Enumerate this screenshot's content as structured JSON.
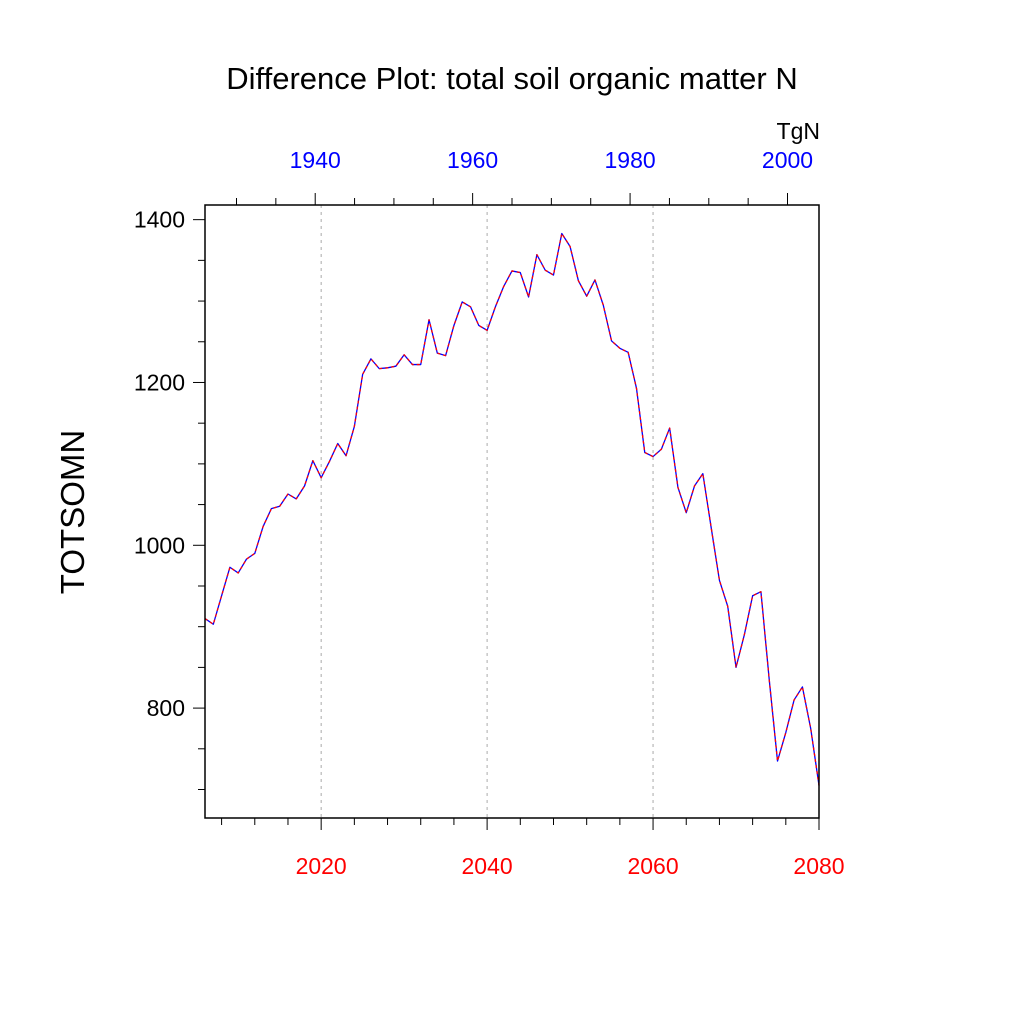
{
  "chart_data": {
    "type": "line",
    "title": "Difference Plot: total soil organic matter N",
    "ylabel": "TOTSOMN",
    "units_label": "TgN",
    "bottom_axis": {
      "range": [
        2006,
        2080
      ],
      "ticks": [
        2020,
        2040,
        2060,
        2080
      ],
      "color": "#ff0000"
    },
    "top_axis": {
      "range": [
        1926,
        2004
      ],
      "ticks": [
        1940,
        1960,
        1980,
        2000
      ],
      "color": "#0000ff"
    },
    "y_axis": {
      "range": [
        665,
        1418
      ],
      "ticks": [
        800,
        1000,
        1200,
        1400
      ]
    },
    "grid": "vertical dashed at bottom-axis ticks",
    "series": [
      {
        "color_primary": "#0000ff",
        "color_dash": "#ff0000",
        "x": [
          2006,
          2007,
          2008,
          2009,
          2010,
          2011,
          2012,
          2013,
          2014,
          2015,
          2016,
          2017,
          2018,
          2019,
          2020,
          2021,
          2022,
          2023,
          2024,
          2025,
          2026,
          2027,
          2028,
          2029,
          2030,
          2031,
          2032,
          2033,
          2034,
          2035,
          2036,
          2037,
          2038,
          2039,
          2040,
          2041,
          2042,
          2043,
          2044,
          2045,
          2046,
          2047,
          2048,
          2049,
          2050,
          2051,
          2052,
          2053,
          2054,
          2055,
          2056,
          2057,
          2058,
          2059,
          2060,
          2061,
          2062,
          2063,
          2064,
          2065,
          2066,
          2067,
          2068,
          2069,
          2070,
          2071,
          2072,
          2073,
          2074,
          2075,
          2076,
          2077,
          2078,
          2079,
          2080
        ],
        "values": [
          910,
          903,
          938,
          973,
          966,
          983,
          990,
          1023,
          1045,
          1048,
          1063,
          1057,
          1073,
          1104,
          1083,
          1103,
          1125,
          1110,
          1146,
          1210,
          1229,
          1217,
          1218,
          1220,
          1234,
          1222,
          1222,
          1277,
          1236,
          1233,
          1270,
          1299,
          1293,
          1270,
          1264,
          1293,
          1318,
          1337,
          1335,
          1305,
          1357,
          1338,
          1332,
          1383,
          1367,
          1325,
          1306,
          1326,
          1295,
          1251,
          1242,
          1237,
          1193,
          1114,
          1109,
          1118,
          1144,
          1071,
          1040,
          1073,
          1088,
          1022,
          957,
          925,
          850,
          890,
          938,
          943,
          835,
          735,
          770,
          810,
          826,
          775,
          705
        ]
      }
    ]
  }
}
